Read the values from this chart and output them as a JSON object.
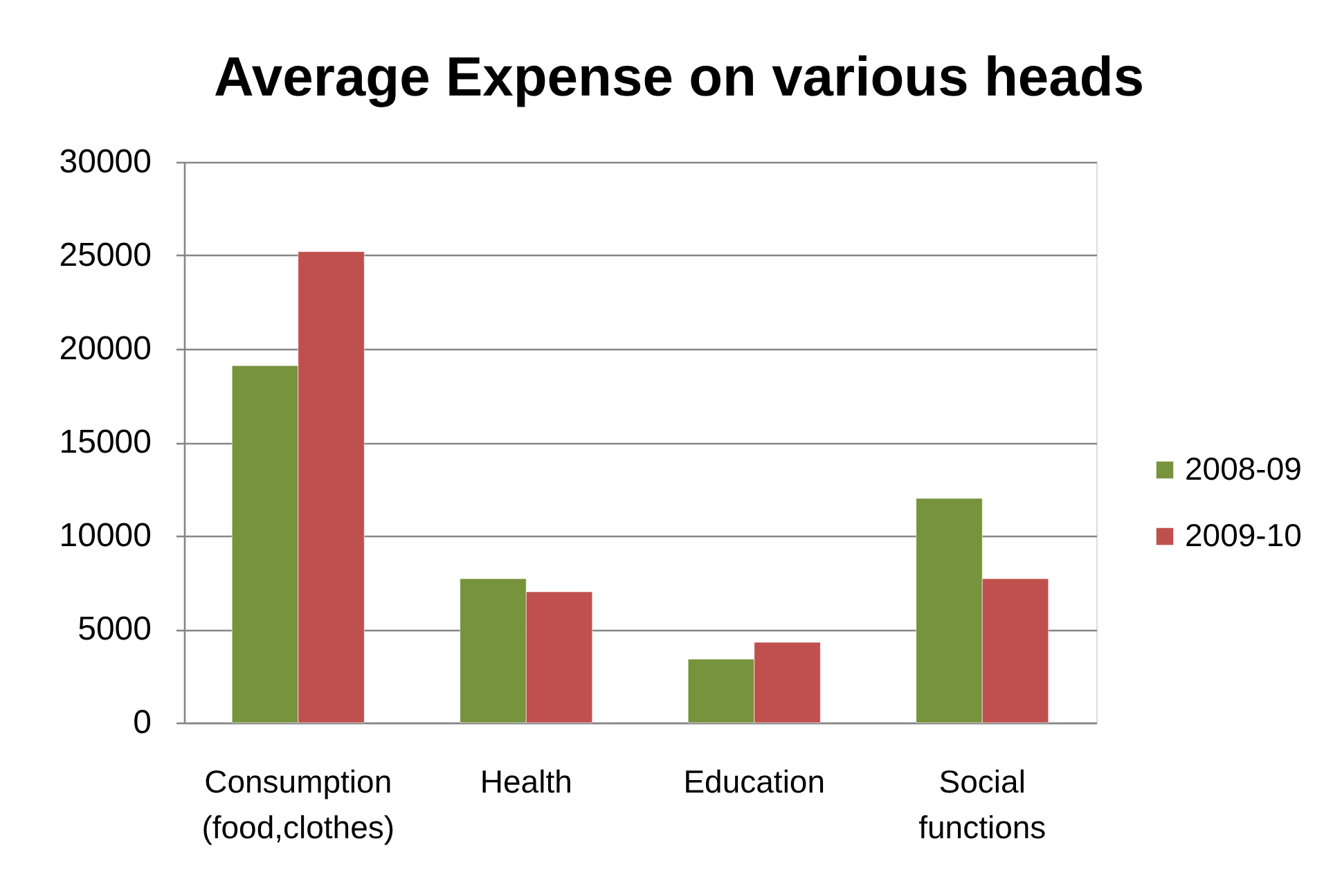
{
  "chart_data": {
    "type": "bar",
    "title": "Average Expense on various heads",
    "categories": [
      "Consumption (food,clothes)",
      "Health",
      "Education",
      "Social functions"
    ],
    "series": [
      {
        "name": "2008-09",
        "color": "#77933c",
        "values": [
          19100,
          7700,
          3400,
          12000
        ]
      },
      {
        "name": "2009-10",
        "color": "#c0504d",
        "values": [
          25200,
          7000,
          4300,
          7700
        ]
      }
    ],
    "ylim": [
      0,
      30000
    ],
    "yticks": [
      0,
      5000,
      10000,
      15000,
      20000,
      25000,
      30000
    ],
    "grid": "y",
    "legend": "right"
  }
}
